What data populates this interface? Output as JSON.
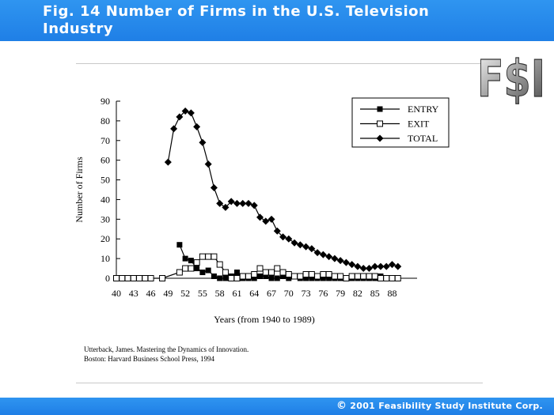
{
  "slide": {
    "title": "Fig. 14   Number of Firms in the U.S. Television Industry",
    "logo_text": "F$I",
    "citation_line1": "Utterback, James.  Mastering the Dynamics of Innovation.",
    "citation_line2": "Boston: Harvard Business School Press, 1994",
    "copyright_symbol": "©",
    "copyright_text": "2001 Feasibility Study Institute Corp."
  },
  "colors": {
    "header": "#1f7fe6",
    "footer": "#1f7fe6",
    "series": "#000000"
  },
  "chart_data": {
    "type": "line",
    "title": "",
    "xlabel": "Years (from 1940 to 1989)",
    "ylabel": "Number of Firms",
    "xlim": [
      40,
      90
    ],
    "ylim": [
      0,
      90
    ],
    "xticks": [
      40,
      43,
      46,
      49,
      52,
      55,
      58,
      61,
      64,
      67,
      70,
      73,
      76,
      79,
      82,
      85,
      88
    ],
    "yticks": [
      0,
      10,
      20,
      30,
      40,
      50,
      60,
      70,
      80,
      90
    ],
    "legend_position": "top-right",
    "grid": false,
    "series": [
      {
        "name": "ENTRY",
        "marker": "filled-square",
        "x": [
          51,
          52,
          53,
          54,
          55,
          56,
          57,
          58,
          59,
          60,
          61,
          62,
          63,
          64,
          65,
          66,
          67,
          68,
          69,
          70,
          71,
          72,
          73,
          74,
          75,
          76,
          77,
          78,
          79,
          80,
          81,
          82,
          83,
          84,
          85,
          86,
          87,
          88,
          89
        ],
        "y": [
          17,
          10,
          9,
          5,
          3,
          4,
          1,
          0,
          0,
          1,
          3,
          0,
          0,
          0,
          1,
          1,
          0,
          0,
          1,
          0,
          1,
          0,
          0,
          0,
          0,
          0,
          0,
          0,
          0,
          0,
          0,
          0,
          0,
          0,
          0,
          1,
          0,
          0,
          0
        ]
      },
      {
        "name": "EXIT",
        "marker": "open-square",
        "x": [
          40,
          41,
          42,
          43,
          44,
          45,
          46,
          48,
          51,
          52,
          53,
          54,
          55,
          56,
          57,
          58,
          59,
          60,
          61,
          62,
          63,
          64,
          65,
          66,
          67,
          68,
          69,
          70,
          71,
          72,
          73,
          74,
          75,
          76,
          77,
          78,
          79,
          80,
          81,
          82,
          83,
          84,
          85,
          86,
          87,
          88,
          89
        ],
        "y": [
          0,
          0,
          0,
          0,
          0,
          0,
          0,
          0,
          3,
          5,
          5,
          8,
          11,
          11,
          11,
          7,
          3,
          0,
          0,
          1,
          1,
          2,
          5,
          3,
          3,
          5,
          3,
          2,
          1,
          1,
          2,
          2,
          1,
          2,
          2,
          1,
          1,
          0,
          1,
          1,
          1,
          1,
          1,
          0,
          0,
          0,
          0
        ]
      },
      {
        "name": "TOTAL",
        "marker": "filled-diamond",
        "x": [
          49,
          50,
          51,
          52,
          53,
          54,
          55,
          56,
          57,
          58,
          59,
          60,
          61,
          62,
          63,
          64,
          65,
          66,
          67,
          68,
          69,
          70,
          71,
          72,
          73,
          74,
          75,
          76,
          77,
          78,
          79,
          80,
          81,
          82,
          83,
          84,
          85,
          86,
          87,
          88,
          89
        ],
        "y": [
          59,
          76,
          82,
          85,
          84,
          77,
          69,
          58,
          46,
          38,
          36,
          39,
          38,
          38,
          38,
          37,
          31,
          29,
          30,
          24,
          21,
          20,
          18,
          17,
          16,
          15,
          13,
          12,
          11,
          10,
          9,
          8,
          7,
          6,
          5,
          5,
          6,
          6,
          6,
          7,
          6
        ]
      }
    ]
  }
}
